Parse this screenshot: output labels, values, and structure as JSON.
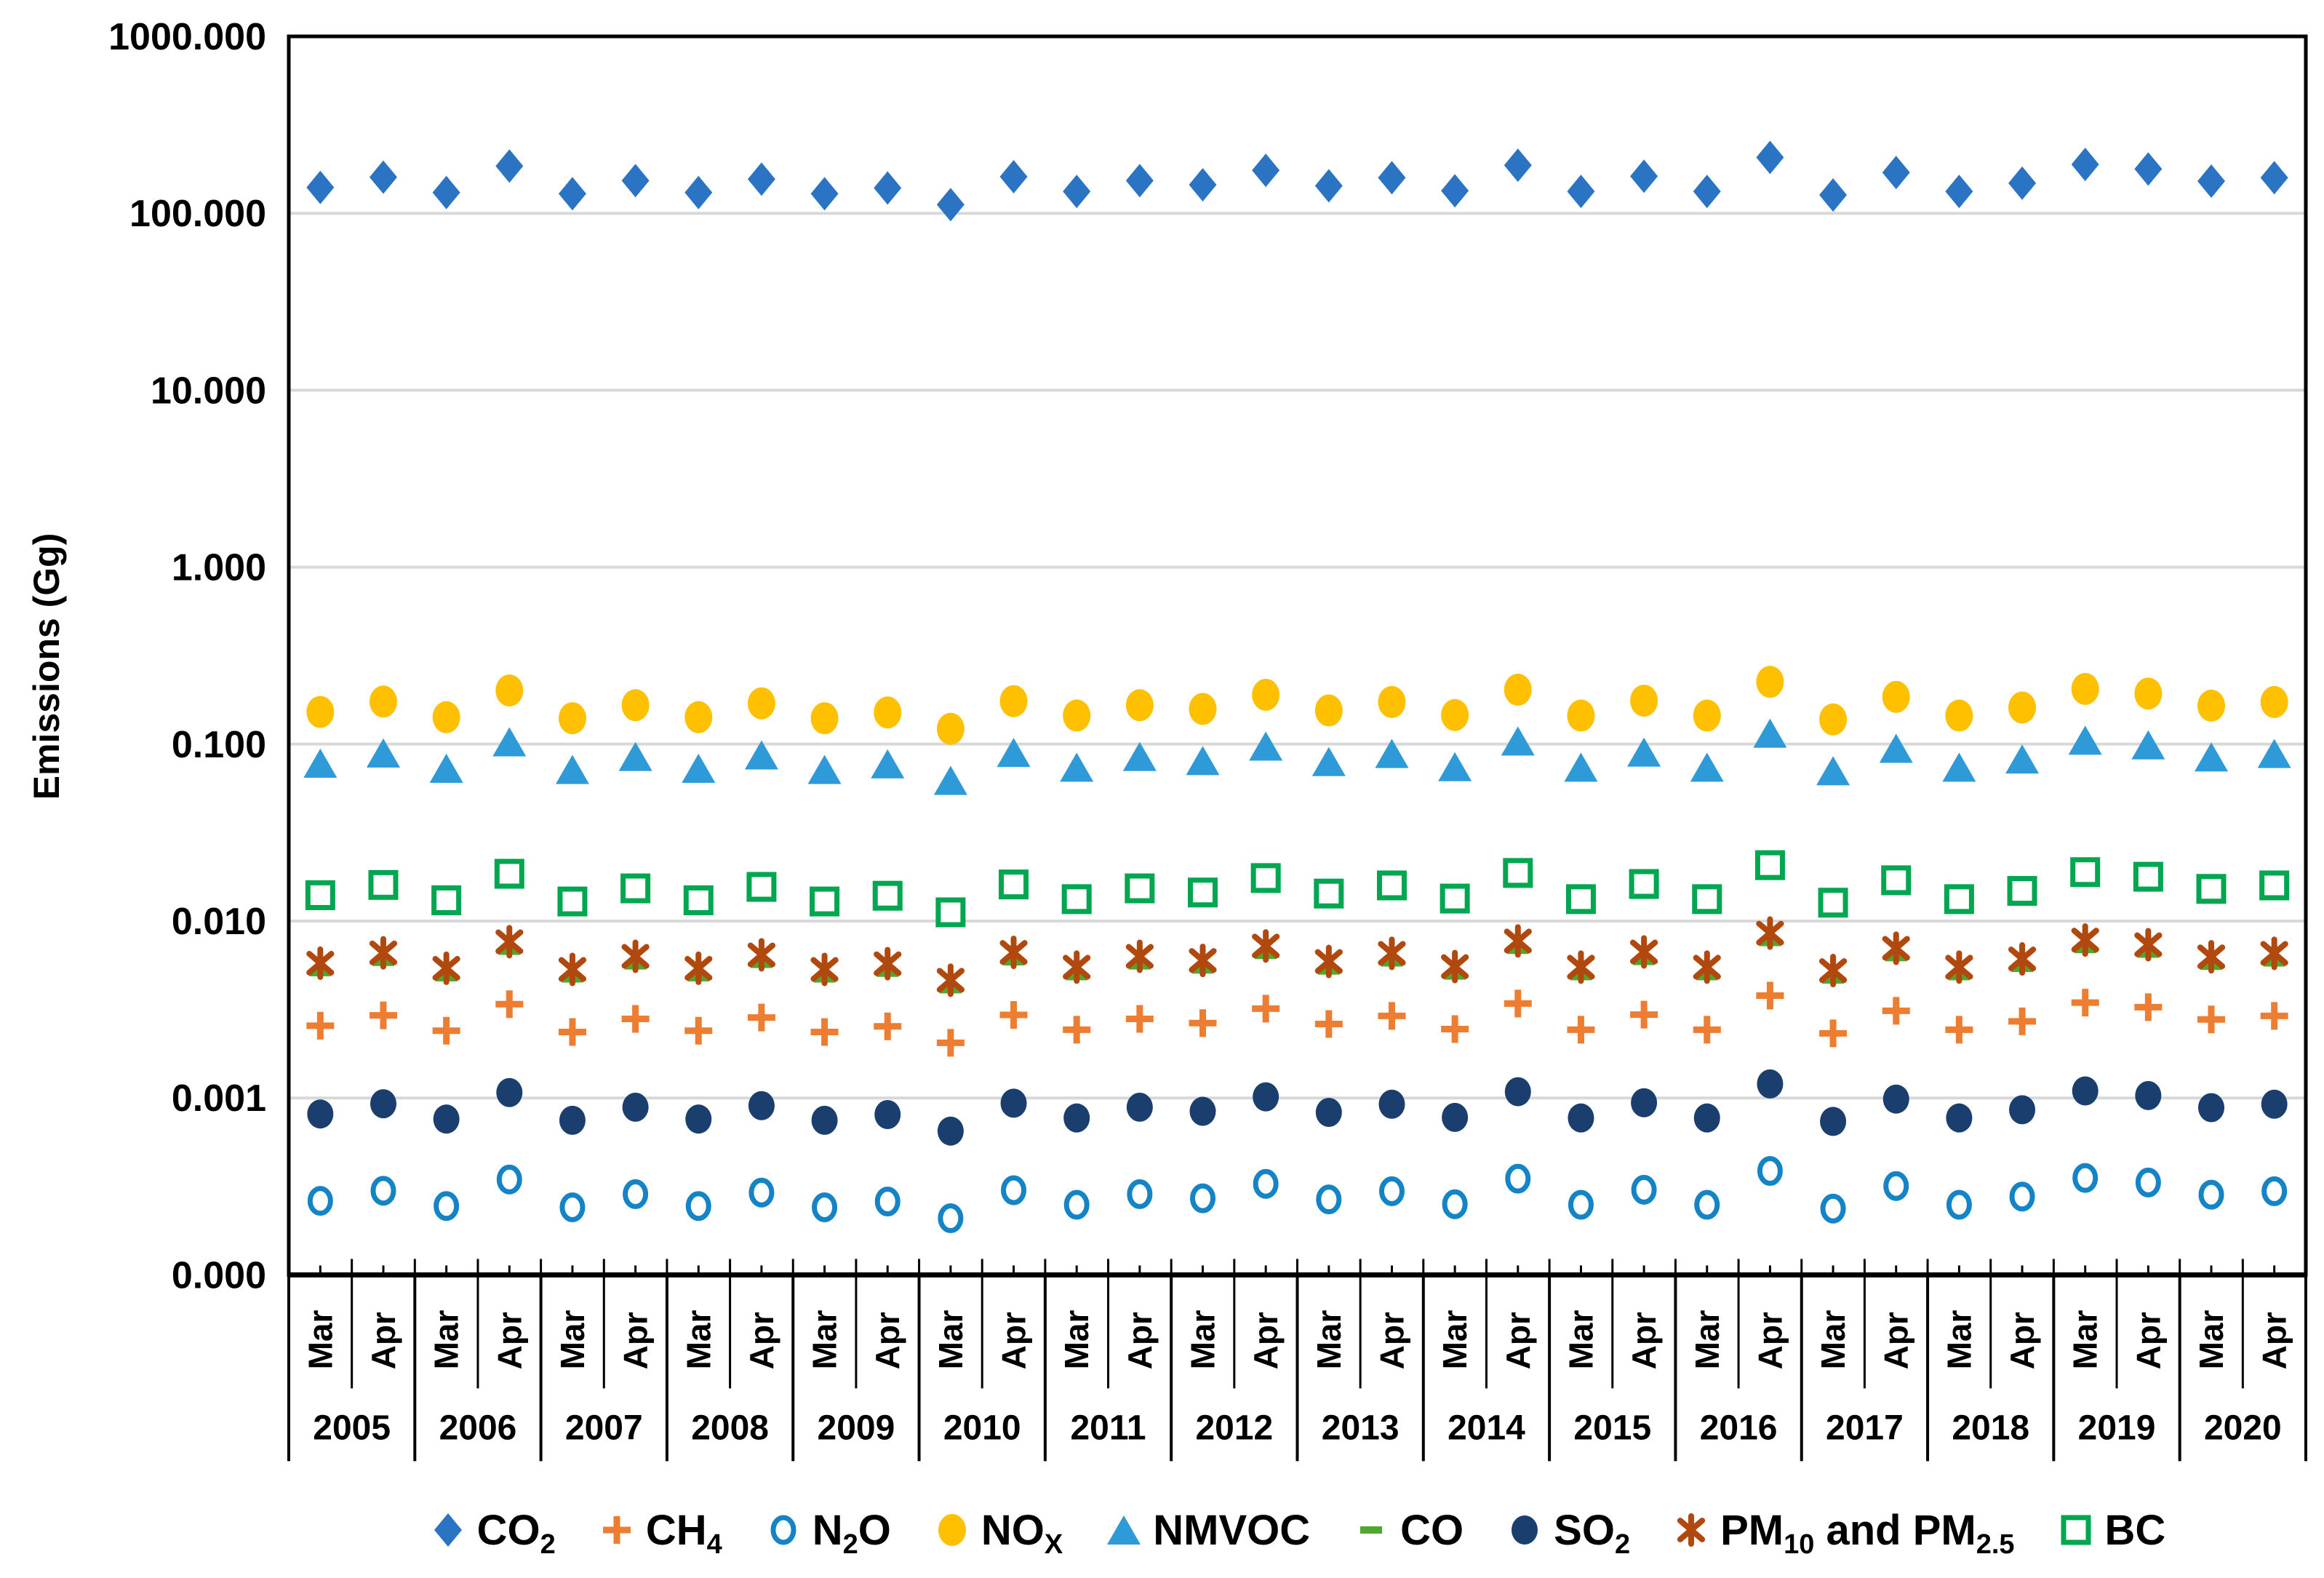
{
  "chart_data": {
    "type": "scatter",
    "title": "",
    "ylabel": "Emissions (Gg)",
    "xlabel": "",
    "y_scale": "log",
    "grid": "horizontal-only",
    "legend_position": "bottom",
    "ylim": [
      0.0001,
      1000
    ],
    "y_ticks": [
      {
        "label": "1000.000",
        "value": 1000
      },
      {
        "label": "100.000",
        "value": 100
      },
      {
        "label": "10.000",
        "value": 10
      },
      {
        "label": "1.000",
        "value": 1
      },
      {
        "label": "0.100",
        "value": 0.1
      },
      {
        "label": "0.010",
        "value": 0.01
      },
      {
        "label": "0.001",
        "value": 0.001
      },
      {
        "label": "0.000",
        "value": 0.0001
      }
    ],
    "years": [
      "2005",
      "2006",
      "2007",
      "2008",
      "2009",
      "2010",
      "2011",
      "2012",
      "2013",
      "2014",
      "2015",
      "2016",
      "2017",
      "2018",
      "2019",
      "2020"
    ],
    "months_per_year": [
      "Mar",
      "Apr"
    ],
    "colors": {
      "grid": "#D8D8D8",
      "axis": "#000000",
      "text": "#000000"
    },
    "series": [
      {
        "id": "co2",
        "label_text": "CO2",
        "label_parts": [
          {
            "t": "CO"
          },
          {
            "t": "2",
            "sub": true
          }
        ],
        "marker": "diamond",
        "color": "#2B74C4",
        "mw": 38,
        "mh": 46,
        "stroke": 0,
        "values": [
          140,
          160,
          131,
          185,
          129,
          153,
          131,
          156,
          129,
          139,
          112,
          161,
          133,
          153,
          145,
          175,
          143,
          159,
          134,
          187,
          133,
          162,
          133,
          207,
          127,
          170,
          133,
          148,
          189,
          178,
          152,
          159
        ]
      },
      {
        "id": "ch4",
        "label_text": "CH4",
        "label_parts": [
          {
            "t": "CH"
          },
          {
            "t": "4",
            "sub": true
          }
        ],
        "marker": "plus",
        "color": "#ED7D31",
        "mw": 38,
        "mh": 38,
        "stroke": 9,
        "values": [
          0.00256,
          0.00293,
          0.0024,
          0.00339,
          0.00236,
          0.0028,
          0.0024,
          0.00285,
          0.00236,
          0.00254,
          0.00205,
          0.00295,
          0.00243,
          0.0028,
          0.00265,
          0.0032,
          0.00262,
          0.00291,
          0.00245,
          0.00342,
          0.00243,
          0.00296,
          0.00243,
          0.00379,
          0.00232,
          0.00311,
          0.00243,
          0.00271,
          0.00346,
          0.00326,
          0.00278,
          0.00291
        ]
      },
      {
        "id": "n2o",
        "label_text": "N2O",
        "label_parts": [
          {
            "t": "N"
          },
          {
            "t": "2",
            "sub": true
          },
          {
            "t": "O"
          }
        ],
        "marker": "ring",
        "color": "#1484C7",
        "mw": 28,
        "mh": 34,
        "stroke": 7,
        "values": [
          0.000262,
          0.000299,
          0.000245,
          0.000346,
          0.000241,
          0.000286,
          0.000245,
          0.000292,
          0.000241,
          0.00026,
          0.000209,
          0.000301,
          0.000249,
          0.000286,
          0.000271,
          0.000327,
          0.000267,
          0.000297,
          0.000251,
          0.00035,
          0.000249,
          0.000303,
          0.000249,
          0.000387,
          0.000237,
          0.000318,
          0.000249,
          0.000277,
          0.000353,
          0.000333,
          0.000284,
          0.000297
        ]
      },
      {
        "id": "nox",
        "label_text": "NOX",
        "label_parts": [
          {
            "t": "NO"
          },
          {
            "t": "X",
            "sub": true
          }
        ],
        "marker": "circle",
        "color": "#FFC000",
        "mw": 38,
        "mh": 44,
        "stroke": 0,
        "values": [
          0.152,
          0.174,
          0.142,
          0.201,
          0.14,
          0.166,
          0.142,
          0.17,
          0.14,
          0.151,
          0.122,
          0.175,
          0.145,
          0.166,
          0.158,
          0.19,
          0.155,
          0.173,
          0.146,
          0.203,
          0.145,
          0.176,
          0.145,
          0.225,
          0.138,
          0.185,
          0.145,
          0.161,
          0.205,
          0.193,
          0.165,
          0.173
        ]
      },
      {
        "id": "nmvoc",
        "label_text": "NMVOC",
        "label_parts": [
          {
            "t": "NMVOC"
          }
        ],
        "marker": "triangle",
        "color": "#2E9BD8",
        "mw": 46,
        "mh": 40,
        "stroke": 0,
        "values": [
          0.078,
          0.0891,
          0.073,
          0.103,
          0.0719,
          0.0852,
          0.073,
          0.0869,
          0.0719,
          0.0774,
          0.0624,
          0.0897,
          0.0741,
          0.0852,
          0.0808,
          0.0975,
          0.0797,
          0.0886,
          0.0746,
          0.1042,
          0.0741,
          0.0902,
          0.0741,
          0.1153,
          0.0707,
          0.0947,
          0.0741,
          0.0824,
          0.1053,
          0.0991,
          0.0847,
          0.0886
        ]
      },
      {
        "id": "co",
        "label_text": "CO",
        "label_parts": [
          {
            "t": "CO"
          }
        ],
        "marker": "dash",
        "color": "#4EA72E",
        "mw": 30,
        "mh": 10,
        "stroke": 0,
        "values": [
          0.00511,
          0.00584,
          0.00478,
          0.00675,
          0.00471,
          0.00558,
          0.00478,
          0.00569,
          0.00471,
          0.00507,
          0.00409,
          0.00588,
          0.00485,
          0.00558,
          0.00529,
          0.00639,
          0.00522,
          0.0058,
          0.00489,
          0.00683,
          0.00485,
          0.00591,
          0.00485,
          0.00756,
          0.00464,
          0.00621,
          0.00485,
          0.0054,
          0.0069,
          0.0065,
          0.00555,
          0.0058
        ]
      },
      {
        "id": "so2",
        "label_text": "SO2",
        "label_parts": [
          {
            "t": "SO"
          },
          {
            "t": "2",
            "sub": true
          }
        ],
        "marker": "circle",
        "color": "#1A3E6E",
        "mw": 36,
        "mh": 40,
        "stroke": 0,
        "values": [
          0.000812,
          0.000928,
          0.00076,
          0.001073,
          0.000748,
          0.000887,
          0.00076,
          0.000905,
          0.000748,
          0.000806,
          0.00065,
          0.000934,
          0.000771,
          0.000887,
          0.000841,
          0.001015,
          0.000829,
          0.000922,
          0.000777,
          0.001085,
          0.000771,
          0.00094,
          0.000771,
          0.001201,
          0.000737,
          0.000986,
          0.000771,
          0.000858,
          0.001096,
          0.001032,
          0.000882,
          0.000922
        ]
      },
      {
        "id": "pm",
        "label_text": "PM10 and PM2.5",
        "label_parts": [
          {
            "t": "PM"
          },
          {
            "t": "10",
            "sub": true
          },
          {
            "t": " and PM"
          },
          {
            "t": "2.5",
            "sub": true
          }
        ],
        "marker": "star6",
        "color": "#B1490E",
        "mw": 36,
        "mh": 38,
        "stroke": 8,
        "values": [
          0.00578,
          0.00661,
          0.00541,
          0.00764,
          0.00533,
          0.00632,
          0.00541,
          0.00644,
          0.00533,
          0.00574,
          0.00463,
          0.00665,
          0.00549,
          0.00632,
          0.00599,
          0.00723,
          0.00591,
          0.00657,
          0.00553,
          0.00772,
          0.00549,
          0.00669,
          0.00549,
          0.00855,
          0.00525,
          0.00702,
          0.00549,
          0.00611,
          0.00781,
          0.00735,
          0.00628,
          0.00657
        ]
      },
      {
        "id": "bc",
        "label_text": "BC",
        "label_parts": [
          {
            "t": "BC"
          }
        ],
        "marker": "square-open",
        "color": "#00A650",
        "mw": 34,
        "mh": 34,
        "stroke": 7,
        "values": [
          0.014,
          0.016,
          0.0131,
          0.0185,
          0.0129,
          0.0153,
          0.0131,
          0.0156,
          0.0129,
          0.0139,
          0.0112,
          0.0161,
          0.0133,
          0.0153,
          0.0145,
          0.0175,
          0.0143,
          0.0159,
          0.0134,
          0.0187,
          0.0133,
          0.0162,
          0.0133,
          0.0207,
          0.0127,
          0.017,
          0.0133,
          0.0148,
          0.0189,
          0.0178,
          0.0152,
          0.0159
        ]
      }
    ],
    "draw_order": [
      "co2",
      "nox",
      "nmvoc",
      "bc",
      "ch4",
      "so2",
      "n2o",
      "co",
      "pm"
    ]
  }
}
